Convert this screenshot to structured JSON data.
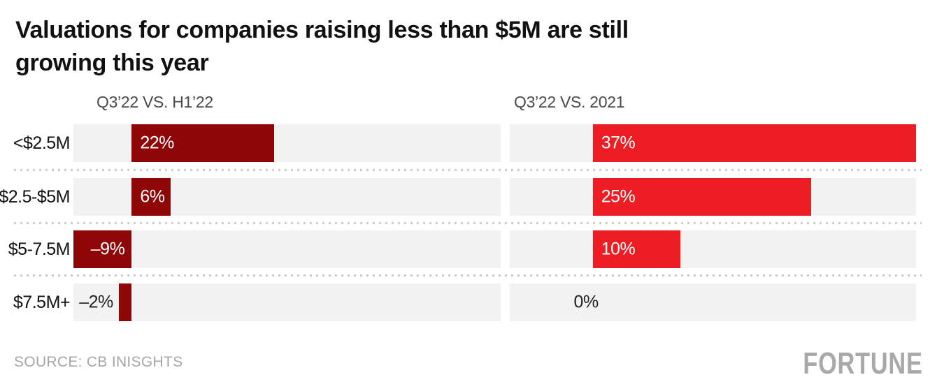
{
  "title_lines": [
    "Valuations for companies raising less than $5M are still",
    "growing this year"
  ],
  "source_text": "SOURCE: CB INISGHTS",
  "brand_text": "FORTUNE",
  "colors": {
    "background": "#FFFFFF",
    "title_text": "#111111",
    "header_text": "#4A4A4A",
    "category_text": "#111111",
    "track": "#F2F2F2",
    "dark_red": "#8E0606",
    "bright_red": "#EC1E24",
    "bar_label_light": "#FFFFFF",
    "bar_label_dark": "#222222",
    "separator_dots": "#CCCCCC",
    "source_text_color": "#A6A6A6",
    "brand_text_color": "#A9A9A9"
  },
  "chart_data": {
    "type": "bar",
    "orientation": "horizontal",
    "categories": [
      "<$2.5M",
      "$2.5-$5M",
      "$5-7.5M",
      "$7.5M+"
    ],
    "value_unit": "percent",
    "grid": "off",
    "legend": "none",
    "series": [
      {
        "name": "Q3’22 VS. H1’22",
        "color": "#8E0606",
        "xlim": [
          -9,
          57
        ],
        "values": [
          22,
          6,
          -9,
          -2
        ],
        "bars": [
          {
            "category": "<$2.5M",
            "value": 22,
            "label": "22%",
            "placement": "inside-start"
          },
          {
            "category": "$2.5-$5M",
            "value": 6,
            "label": "6%",
            "placement": "inside-start"
          },
          {
            "category": "$5-7.5M",
            "value": -9,
            "label": "–9%",
            "placement": "inside-end"
          },
          {
            "category": "$7.5M+",
            "value": -2,
            "label": "–2%",
            "placement": "outside-left"
          }
        ]
      },
      {
        "name": "Q3’22 VS. 2021",
        "color": "#EC1E24",
        "xlim": [
          -9.5,
          37
        ],
        "values": [
          37,
          25,
          10,
          0
        ],
        "bars": [
          {
            "category": "<$2.5M",
            "value": 37,
            "label": "37%",
            "placement": "inside-start"
          },
          {
            "category": "$2.5-$5M",
            "value": 25,
            "label": "25%",
            "placement": "inside-start"
          },
          {
            "category": "$5-7.5M",
            "value": 10,
            "label": "10%",
            "placement": "inside-start"
          },
          {
            "category": "$7.5M+",
            "value": 0,
            "label": "0%",
            "placement": "at-zero"
          }
        ]
      }
    ]
  }
}
